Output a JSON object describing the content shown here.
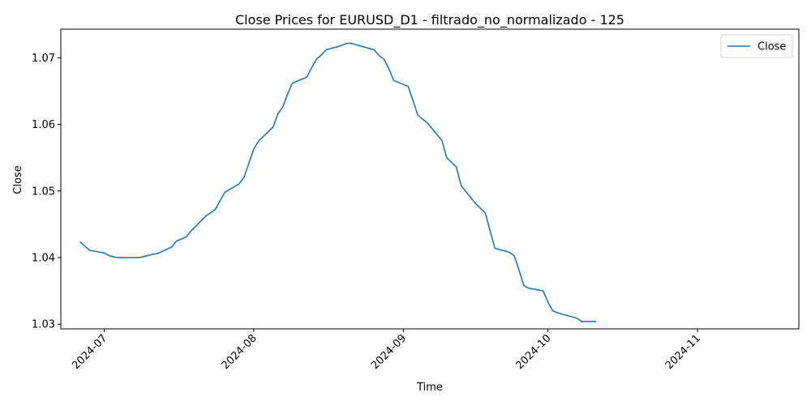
{
  "chart_data": {
    "type": "line",
    "title": "Close Prices for EURUSD_D1 - filtrado_no_normalizado - 125",
    "xlabel": "Time",
    "ylabel": "Close",
    "x_ticks": [
      {
        "label": "2024-07",
        "date": "2024-07-01"
      },
      {
        "label": "2024-08",
        "date": "2024-08-01"
      },
      {
        "label": "2024-09",
        "date": "2024-09-01"
      },
      {
        "label": "2024-10",
        "date": "2024-10-01"
      },
      {
        "label": "2024-11",
        "date": "2024-11-01"
      }
    ],
    "y_ticks": [
      1.03,
      1.04,
      1.05,
      1.06,
      1.07
    ],
    "xlim": [
      "2024-06-22",
      "2024-11-22"
    ],
    "ylim": [
      1.0293,
      1.0743
    ],
    "legend": {
      "position": "top-right",
      "entries": [
        "Close"
      ]
    },
    "grid": false,
    "series": [
      {
        "name": "Close",
        "color": "#1f77b4",
        "points": [
          [
            "2024-06-26",
            1.0424
          ],
          [
            "2024-06-27",
            1.0417
          ],
          [
            "2024-06-28",
            1.0411
          ],
          [
            "2024-07-01",
            1.0407
          ],
          [
            "2024-07-02",
            1.0403
          ],
          [
            "2024-07-03",
            1.0401
          ],
          [
            "2024-07-04",
            1.04
          ],
          [
            "2024-07-05",
            1.04
          ],
          [
            "2024-07-08",
            1.04
          ],
          [
            "2024-07-09",
            1.0401
          ],
          [
            "2024-07-10",
            1.0403
          ],
          [
            "2024-07-11",
            1.0405
          ],
          [
            "2024-07-12",
            1.0406
          ],
          [
            "2024-07-15",
            1.0416
          ],
          [
            "2024-07-16",
            1.0425
          ],
          [
            "2024-07-17",
            1.0428
          ],
          [
            "2024-07-18",
            1.0431
          ],
          [
            "2024-07-19",
            1.044
          ],
          [
            "2024-07-22",
            1.0462
          ],
          [
            "2024-07-23",
            1.0467
          ],
          [
            "2024-07-24",
            1.0472
          ],
          [
            "2024-07-25",
            1.0485
          ],
          [
            "2024-07-26",
            1.0498
          ],
          [
            "2024-07-29",
            1.0511
          ],
          [
            "2024-07-30",
            1.0521
          ],
          [
            "2024-07-31",
            1.0542
          ],
          [
            "2024-08-01",
            1.0563
          ],
          [
            "2024-08-02",
            1.0575
          ],
          [
            "2024-08-05",
            1.0596
          ],
          [
            "2024-08-06",
            1.0616
          ],
          [
            "2024-08-07",
            1.0626
          ],
          [
            "2024-08-08",
            1.0645
          ],
          [
            "2024-08-09",
            1.0662
          ],
          [
            "2024-08-12",
            1.0671
          ],
          [
            "2024-08-13",
            1.0685
          ],
          [
            "2024-08-14",
            1.0698
          ],
          [
            "2024-08-15",
            1.0704
          ],
          [
            "2024-08-16",
            1.0712
          ],
          [
            "2024-08-19",
            1.0718
          ],
          [
            "2024-08-20",
            1.0721
          ],
          [
            "2024-08-21",
            1.0722
          ],
          [
            "2024-08-22",
            1.072
          ],
          [
            "2024-08-23",
            1.0718
          ],
          [
            "2024-08-26",
            1.0712
          ],
          [
            "2024-08-27",
            1.0703
          ],
          [
            "2024-08-28",
            1.0698
          ],
          [
            "2024-08-29",
            1.0684
          ],
          [
            "2024-08-30",
            1.0666
          ],
          [
            "2024-09-02",
            1.0657
          ],
          [
            "2024-09-03",
            1.0636
          ],
          [
            "2024-09-04",
            1.0614
          ],
          [
            "2024-09-05",
            1.0608
          ],
          [
            "2024-09-06",
            1.0602
          ],
          [
            "2024-09-09",
            1.0576
          ],
          [
            "2024-09-10",
            1.055
          ],
          [
            "2024-09-11",
            1.0543
          ],
          [
            "2024-09-12",
            1.0536
          ],
          [
            "2024-09-13",
            1.0508
          ],
          [
            "2024-09-16",
            1.0481
          ],
          [
            "2024-09-17",
            1.0474
          ],
          [
            "2024-09-18",
            1.0467
          ],
          [
            "2024-09-19",
            1.044
          ],
          [
            "2024-09-20",
            1.0414
          ],
          [
            "2024-09-23",
            1.0408
          ],
          [
            "2024-09-24",
            1.0403
          ],
          [
            "2024-09-25",
            1.0381
          ],
          [
            "2024-09-26",
            1.0358
          ],
          [
            "2024-09-27",
            1.0354
          ],
          [
            "2024-09-30",
            1.035
          ],
          [
            "2024-10-01",
            1.0333
          ],
          [
            "2024-10-02",
            1.032
          ],
          [
            "2024-10-03",
            1.0317
          ],
          [
            "2024-10-04",
            1.0315
          ],
          [
            "2024-10-07",
            1.0309
          ],
          [
            "2024-10-08",
            1.0304
          ],
          [
            "2024-10-09",
            1.0304
          ],
          [
            "2024-10-10",
            1.0304
          ],
          [
            "2024-10-11",
            1.0304
          ]
        ]
      }
    ]
  }
}
